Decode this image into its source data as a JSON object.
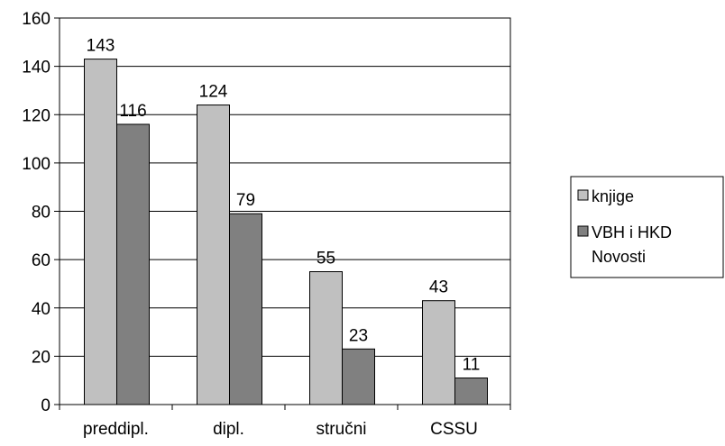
{
  "chart_data": {
    "type": "bar",
    "title": "",
    "xlabel": "",
    "ylabel": "",
    "categories": [
      "preddipl.",
      "dipl.",
      "stručni",
      "CSSU"
    ],
    "series": [
      {
        "name": "knjige",
        "values": [
          143,
          124,
          55,
          43
        ],
        "color": "#c0c0c0"
      },
      {
        "name": "VBH i HKD Novosti",
        "name_lines": [
          "VBH i HKD",
          "Novosti"
        ],
        "values": [
          116,
          79,
          23,
          11
        ],
        "color": "#808080"
      }
    ],
    "ylim": [
      0,
      160
    ],
    "yticks": [
      0,
      20,
      40,
      60,
      80,
      100,
      120,
      140,
      160
    ],
    "grid": true,
    "legend_position": "right",
    "data_labels": true
  }
}
